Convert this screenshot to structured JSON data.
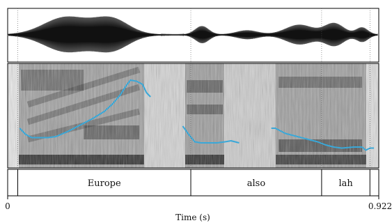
{
  "time_axis": {
    "label": "Time (s)",
    "start_label": "0",
    "end_label": "0.922",
    "range": [
      0,
      0.922
    ]
  },
  "textgrid": {
    "intervals": [
      {
        "label": "",
        "start": 0.0,
        "end": 0.025
      },
      {
        "label": "Europe",
        "start": 0.025,
        "end": 0.455
      },
      {
        "label": "also",
        "start": 0.455,
        "end": 0.78
      },
      {
        "label": "lah",
        "start": 0.78,
        "end": 0.9
      },
      {
        "label": "",
        "start": 0.9,
        "end": 0.922
      }
    ]
  },
  "pitch_track": {
    "color": "#3aa8d8",
    "segments": [
      [
        [
          0.03,
          0.38
        ],
        [
          0.045,
          0.32
        ],
        [
          0.06,
          0.29
        ],
        [
          0.08,
          0.29
        ],
        [
          0.1,
          0.29
        ],
        [
          0.12,
          0.3
        ],
        [
          0.15,
          0.35
        ],
        [
          0.18,
          0.41
        ],
        [
          0.21,
          0.47
        ],
        [
          0.24,
          0.54
        ],
        [
          0.26,
          0.61
        ],
        [
          0.28,
          0.7
        ],
        [
          0.295,
          0.79
        ],
        [
          0.305,
          0.84
        ],
        [
          0.32,
          0.83
        ],
        [
          0.335,
          0.8
        ],
        [
          0.345,
          0.72
        ],
        [
          0.355,
          0.68
        ]
      ],
      [
        [
          0.435,
          0.4
        ],
        [
          0.45,
          0.32
        ],
        [
          0.465,
          0.25
        ],
        [
          0.48,
          0.24
        ],
        [
          0.5,
          0.24
        ],
        [
          0.52,
          0.24
        ],
        [
          0.54,
          0.25
        ],
        [
          0.555,
          0.26
        ],
        [
          0.565,
          0.25
        ],
        [
          0.575,
          0.24
        ]
      ],
      [
        [
          0.655,
          0.38
        ],
        [
          0.665,
          0.38
        ],
        [
          0.69,
          0.33
        ],
        [
          0.72,
          0.3
        ],
        [
          0.75,
          0.27
        ],
        [
          0.77,
          0.25
        ],
        [
          0.79,
          0.22
        ],
        [
          0.81,
          0.2
        ],
        [
          0.83,
          0.19
        ],
        [
          0.86,
          0.2
        ],
        [
          0.88,
          0.2
        ],
        [
          0.89,
          0.17
        ],
        [
          0.9,
          0.19
        ],
        [
          0.91,
          0.19
        ]
      ]
    ]
  }
}
